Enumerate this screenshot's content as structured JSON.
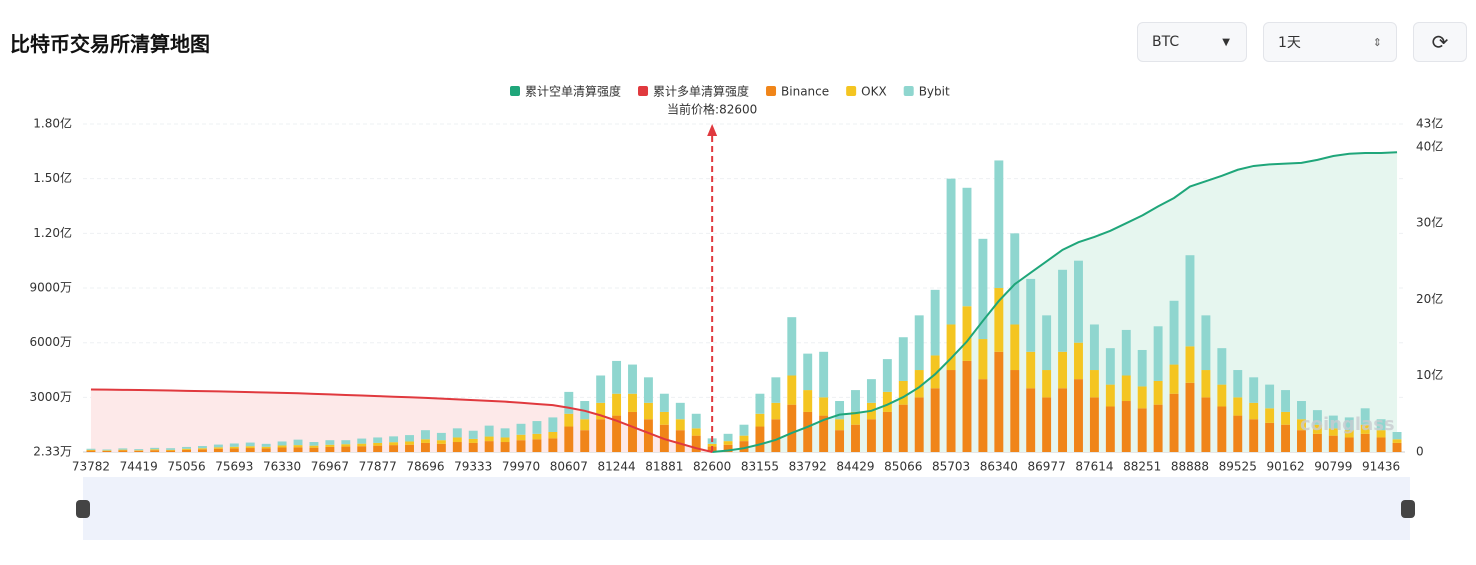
{
  "header": {
    "title": "比特币交易所清算地图",
    "symbol": "BTC",
    "period": "1天"
  },
  "chart_data": {
    "type": "bar",
    "stacked": true,
    "categories": [
      "73782",
      null,
      null,
      "74419",
      null,
      null,
      "75056",
      null,
      null,
      "75693",
      null,
      null,
      "76330",
      null,
      null,
      "76967",
      null,
      null,
      "77877",
      null,
      null,
      "78696",
      null,
      null,
      "79333",
      null,
      null,
      "79970",
      null,
      null,
      "80607",
      null,
      null,
      "81244",
      null,
      null,
      "81881",
      null,
      null,
      "82600",
      null,
      null,
      "83155",
      null,
      null,
      "83792",
      null,
      null,
      "84429",
      null,
      null,
      "85066",
      null,
      null,
      "85703",
      null,
      null,
      "86340",
      null,
      null,
      "86977",
      null,
      null,
      "87614",
      null,
      null,
      "88251",
      null,
      null,
      "88888",
      null,
      null,
      "89525",
      null,
      null,
      "90162",
      null,
      null,
      "90799",
      null,
      null,
      "91436",
      null
    ],
    "series": [
      {
        "name": "累计空单清算强度",
        "color": "#1fa67a",
        "type": "line",
        "axis": "y2",
        "area_color": "#e6f6ef",
        "values": [
          null,
          null,
          null,
          null,
          null,
          null,
          null,
          null,
          null,
          null,
          null,
          null,
          null,
          null,
          null,
          null,
          null,
          null,
          null,
          null,
          null,
          null,
          null,
          null,
          null,
          null,
          null,
          null,
          null,
          null,
          null,
          null,
          null,
          null,
          null,
          null,
          null,
          null,
          null,
          0,
          0.2,
          0.5,
          1.0,
          1.6,
          2.5,
          3.3,
          4.2,
          4.9,
          5.1,
          5.4,
          6.2,
          7.2,
          8.5,
          10.2,
          12.3,
          14.5,
          17.2,
          19.8,
          22.0,
          23.5,
          25.0,
          26.5,
          27.5,
          28.2,
          29.0,
          30.0,
          31.0,
          32.2,
          33.3,
          34.8,
          35.5,
          36.2,
          37.0,
          37.5,
          37.7,
          37.8,
          37.9,
          38.3,
          38.8,
          39.1,
          39.2,
          39.2,
          39.3
        ]
      },
      {
        "name": "累计多单清算强度",
        "color": "#e0393e",
        "type": "line",
        "axis": "y2",
        "area_color": "#fde9e9",
        "values": [
          8.2,
          8.18,
          8.15,
          8.12,
          8.1,
          8.06,
          8.02,
          7.98,
          7.94,
          7.9,
          7.85,
          7.8,
          7.75,
          7.7,
          7.62,
          7.55,
          7.48,
          7.4,
          7.32,
          7.25,
          7.18,
          7.1,
          7.0,
          6.9,
          6.8,
          6.7,
          6.6,
          6.45,
          6.3,
          6.15,
          5.8,
          5.4,
          4.8,
          4.1,
          3.3,
          2.5,
          1.7,
          1.1,
          0.5,
          0.0,
          null,
          null,
          null,
          null,
          null,
          null,
          null,
          null,
          null,
          null,
          null,
          null,
          null,
          null,
          null,
          null,
          null,
          null,
          null,
          null,
          null,
          null,
          null,
          null,
          null,
          null,
          null,
          null,
          null,
          null,
          null,
          null,
          null,
          null,
          null,
          null,
          null,
          null,
          null,
          null,
          null,
          null,
          null
        ]
      },
      {
        "name": "Binance",
        "color": "#f08519",
        "values": [
          80,
          60,
          90,
          70,
          100,
          80,
          120,
          150,
          180,
          200,
          220,
          200,
          250,
          260,
          240,
          280,
          300,
          320,
          350,
          380,
          400,
          500,
          450,
          550,
          500,
          600,
          550,
          650,
          700,
          750,
          1400,
          1200,
          1800,
          2000,
          2200,
          1800,
          1500,
          1200,
          900,
          300,
          400,
          600,
          1400,
          1800,
          2600,
          2200,
          2000,
          1200,
          1500,
          1800,
          2200,
          2600,
          3000,
          3500,
          4500,
          5000,
          4000,
          5500,
          4500,
          3500,
          3000,
          3500,
          4000,
          3000,
          2500,
          2800,
          2400,
          2600,
          3200,
          3800,
          3000,
          2500,
          2000,
          1800,
          1600,
          1500,
          1200,
          1000,
          900,
          800,
          1000,
          800,
          500
        ]
      },
      {
        "name": "OKX",
        "color": "#f4c521",
        "values": [
          40,
          30,
          40,
          30,
          50,
          40,
          60,
          60,
          80,
          90,
          100,
          90,
          110,
          120,
          110,
          120,
          130,
          140,
          150,
          160,
          180,
          200,
          200,
          250,
          220,
          250,
          250,
          300,
          300,
          350,
          700,
          600,
          900,
          1200,
          1000,
          900,
          700,
          600,
          400,
          150,
          200,
          300,
          700,
          900,
          1600,
          1200,
          1000,
          600,
          700,
          900,
          1100,
          1300,
          1500,
          1800,
          2500,
          3000,
          2200,
          3500,
          2500,
          2000,
          1500,
          2000,
          2000,
          1500,
          1200,
          1400,
          1200,
          1300,
          1600,
          2000,
          1500,
          1200,
          1000,
          900,
          800,
          700,
          600,
          500,
          400,
          400,
          500,
          400,
          200
        ]
      },
      {
        "name": "Bybit",
        "color": "#8fd6cf",
        "values": [
          60,
          50,
          70,
          60,
          80,
          90,
          100,
          120,
          150,
          180,
          200,
          160,
          220,
          300,
          200,
          250,
          220,
          280,
          300,
          320,
          350,
          500,
          400,
          500,
          450,
          600,
          500,
          600,
          700,
          800,
          1200,
          1000,
          1500,
          1800,
          1600,
          1400,
          1000,
          900,
          800,
          300,
          400,
          600,
          1100,
          1400,
          3200,
          2000,
          2500,
          1000,
          1200,
          1300,
          1800,
          2400,
          3000,
          3600,
          8000,
          6500,
          5500,
          7000,
          5000,
          4000,
          3000,
          4500,
          4500,
          2500,
          2000,
          2500,
          2000,
          3000,
          3500,
          5000,
          3000,
          2000,
          1500,
          1400,
          1300,
          1200,
          1000,
          800,
          700,
          700,
          900,
          600,
          400
        ]
      }
    ],
    "ylim": [
      2.33,
      18000
    ],
    "yticks": [
      {
        "value": 2.33,
        "label": "2.33万"
      },
      {
        "value": 3000,
        "label": "3000万"
      },
      {
        "value": 6000,
        "label": "6000万"
      },
      {
        "value": 9000,
        "label": "9000万"
      },
      {
        "value": 12000,
        "label": "1.20亿"
      },
      {
        "value": 15000,
        "label": "1.50亿"
      },
      {
        "value": 18000,
        "label": "1.80亿"
      }
    ],
    "y2lim": [
      0,
      43
    ],
    "y2ticks": [
      {
        "value": 0,
        "label": "0"
      },
      {
        "value": 10,
        "label": "10亿"
      },
      {
        "value": 20,
        "label": "20亿"
      },
      {
        "value": 30,
        "label": "30亿"
      },
      {
        "value": 40,
        "label": "40亿"
      },
      {
        "value": 43,
        "label": "43亿"
      }
    ],
    "grid": true,
    "annotation": {
      "label": "当前价格:82600",
      "category": "82600",
      "color": "#e0393e"
    },
    "watermark": "coinglass"
  }
}
